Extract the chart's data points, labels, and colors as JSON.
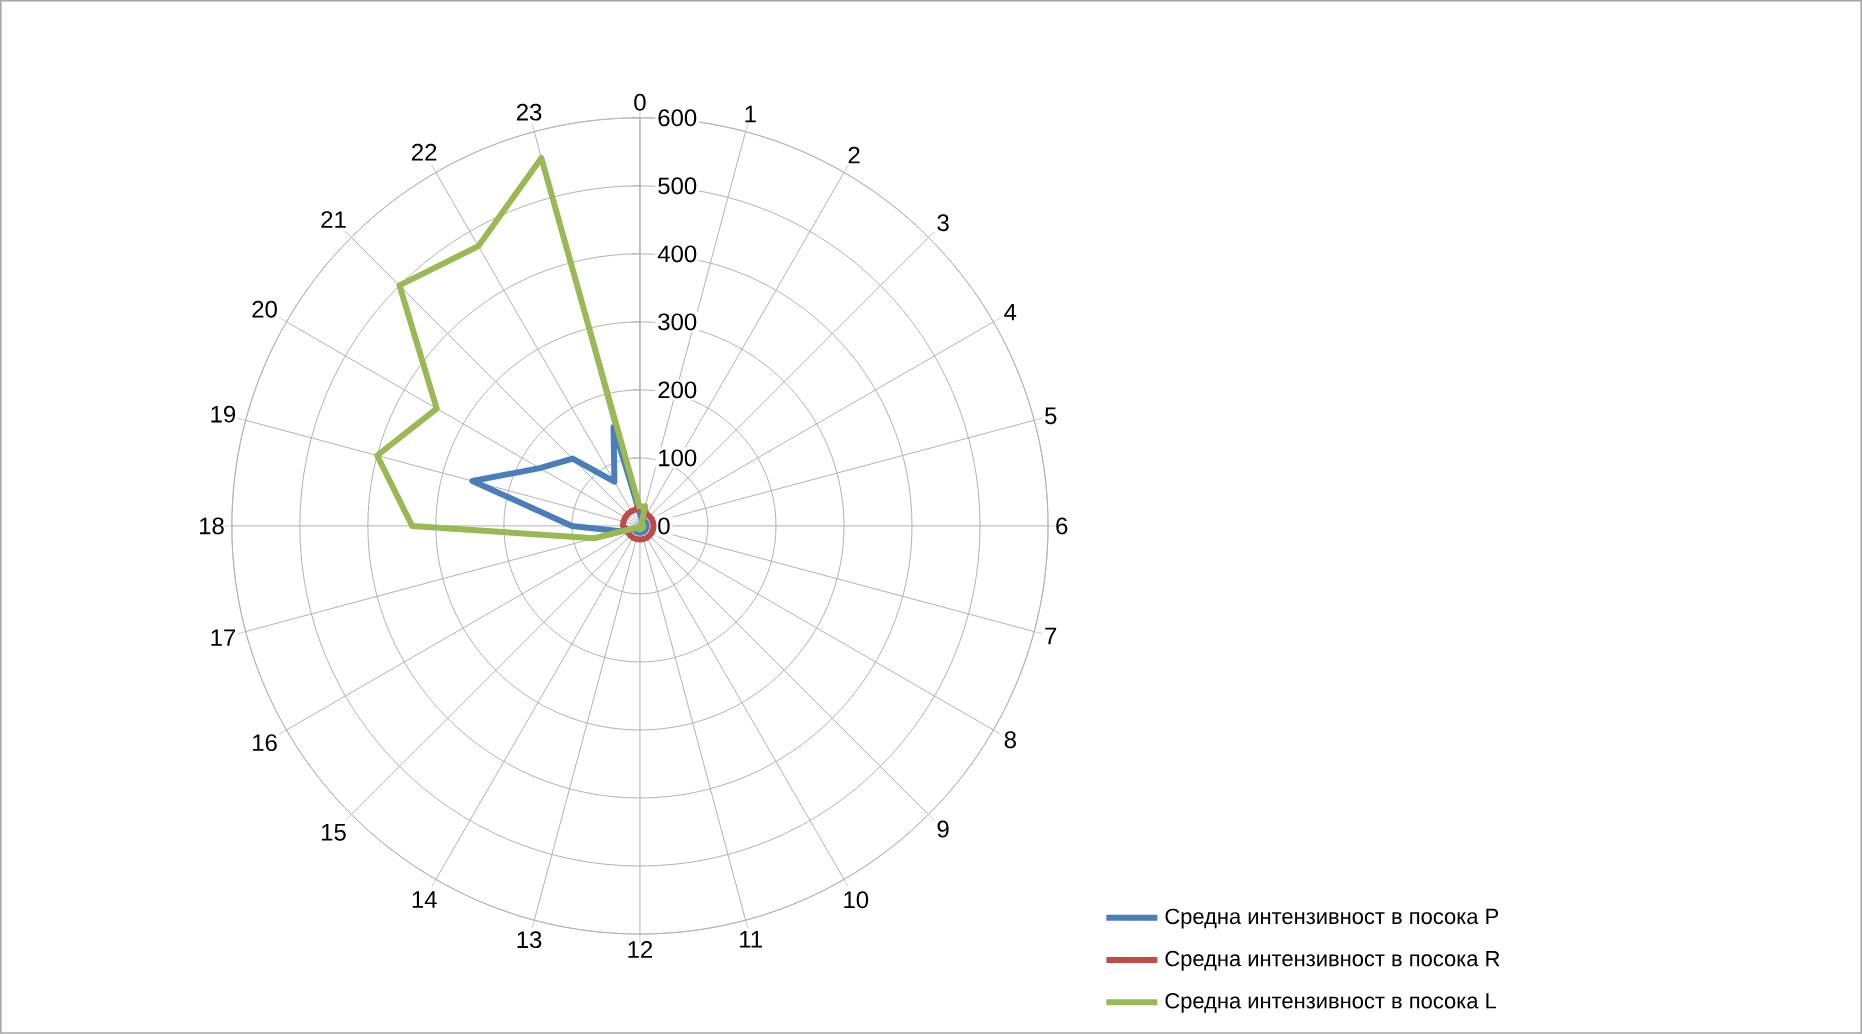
{
  "chart_data": {
    "type": "radar",
    "categories": [
      "0",
      "1",
      "2",
      "3",
      "4",
      "5",
      "6",
      "7",
      "8",
      "9",
      "10",
      "11",
      "12",
      "13",
      "14",
      "15",
      "16",
      "17",
      "18",
      "19",
      "20",
      "21",
      "22",
      "23"
    ],
    "series": [
      {
        "name": "Средна интензивност в посока  P",
        "color": "#4a7ebb",
        "values": [
          20,
          10,
          10,
          10,
          10,
          10,
          10,
          10,
          10,
          10,
          10,
          10,
          10,
          10,
          10,
          10,
          10,
          30,
          100,
          255,
          170,
          140,
          75,
          150
        ]
      },
      {
        "name": "Средна интензивност в посока   R",
        "color": "#be4b48",
        "values": [
          30,
          25,
          20,
          20,
          20,
          20,
          20,
          20,
          20,
          20,
          20,
          20,
          20,
          20,
          20,
          20,
          20,
          20,
          25,
          25,
          25,
          25,
          25,
          25
        ]
      },
      {
        "name": "Средна интензивност в посока  L",
        "color": "#98b954",
        "values": [
          25,
          30,
          5,
          5,
          5,
          5,
          5,
          5,
          5,
          5,
          5,
          5,
          5,
          5,
          5,
          5,
          5,
          70,
          335,
          400,
          345,
          500,
          475,
          560
        ]
      }
    ],
    "ylim": [
      0,
      600
    ],
    "yticks": [
      0,
      100,
      200,
      300,
      400,
      500,
      600
    ],
    "grid": true,
    "legend": "bottom right",
    "marker": "none",
    "line_style": "solid"
  }
}
